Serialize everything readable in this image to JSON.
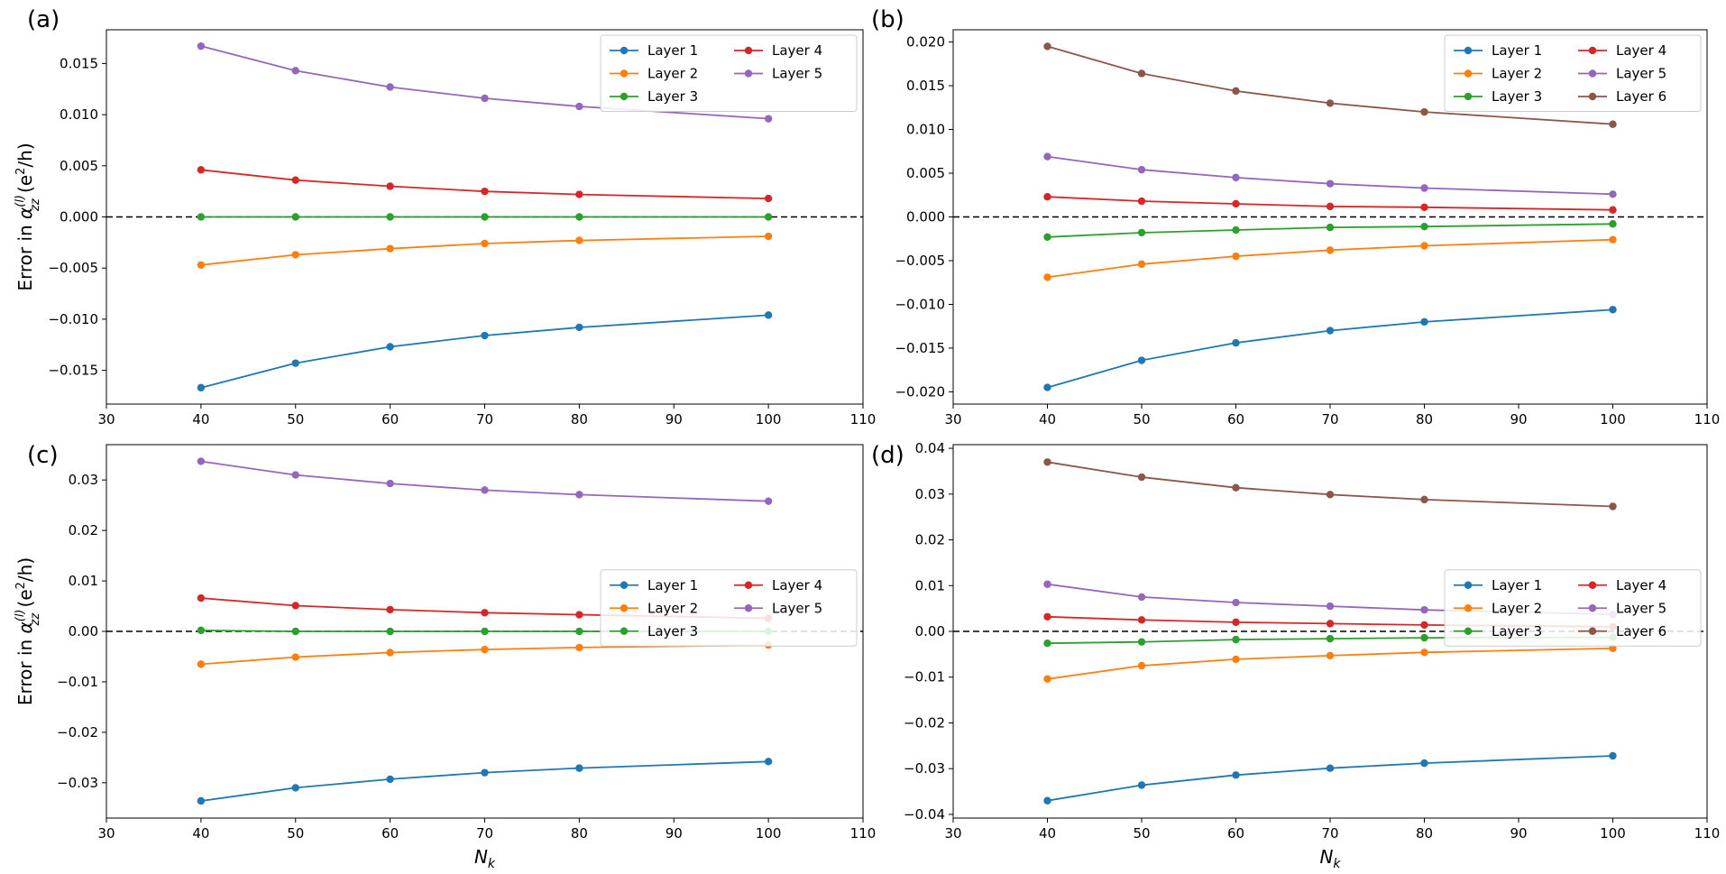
{
  "figure": {
    "ylabel": "Error in α_zz^(l) (e²/h)",
    "ylabel_prefix": "Error in ",
    "ylabel_symbol": "α",
    "ylabel_sub": "zz",
    "ylabel_sup": "(l)",
    "ylabel_units_open": " (e",
    "ylabel_units_sup": "2",
    "ylabel_units_close": "/h)",
    "xlabel_main": "N",
    "xlabel_sub": "k"
  },
  "colors": {
    "Layer 1": "#1f77b4",
    "Layer 2": "#ff7f0e",
    "Layer 3": "#2ca02c",
    "Layer 4": "#d62728",
    "Layer 5": "#9467bd",
    "Layer 6": "#8c564b",
    "reference": "#000000"
  },
  "chart_data": [
    {
      "type": "line",
      "panel_label": "(a)",
      "x": [
        40,
        50,
        60,
        70,
        80,
        100
      ],
      "xlim": [
        30,
        110
      ],
      "xticks": [
        30,
        40,
        50,
        60,
        70,
        80,
        90,
        100,
        110
      ],
      "ylim": [
        -0.0183,
        0.0183
      ],
      "yticks": [
        -0.015,
        -0.01,
        -0.005,
        0.0,
        0.005,
        0.01,
        0.015
      ],
      "ytick_labels": [
        "−0.015",
        "−0.010",
        "−0.005",
        "0.000",
        "0.005",
        "0.010",
        "0.015"
      ],
      "reference_line": 0,
      "legend_position": "top-right",
      "legend_columns": 2,
      "show_xlabel": false,
      "show_ylabel": true,
      "series": [
        {
          "name": "Layer 1",
          "values": [
            -0.0167,
            -0.0143,
            -0.0127,
            -0.0116,
            -0.0108,
            -0.0096
          ]
        },
        {
          "name": "Layer 2",
          "values": [
            -0.0047,
            -0.0037,
            -0.0031,
            -0.0026,
            -0.0023,
            -0.0019
          ]
        },
        {
          "name": "Layer 3",
          "values": [
            0.0,
            0.0,
            0.0,
            0.0,
            0.0,
            0.0
          ]
        },
        {
          "name": "Layer 4",
          "values": [
            0.0046,
            0.0036,
            0.003,
            0.0025,
            0.0022,
            0.0018
          ]
        },
        {
          "name": "Layer 5",
          "values": [
            0.0167,
            0.0143,
            0.0127,
            0.0116,
            0.0108,
            0.0096
          ]
        }
      ]
    },
    {
      "type": "line",
      "panel_label": "(b)",
      "x": [
        40,
        50,
        60,
        70,
        80,
        100
      ],
      "xlim": [
        30,
        110
      ],
      "xticks": [
        30,
        40,
        50,
        60,
        70,
        80,
        90,
        100,
        110
      ],
      "ylim": [
        -0.0214,
        0.0214
      ],
      "yticks": [
        -0.02,
        -0.015,
        -0.01,
        -0.005,
        0.0,
        0.005,
        0.01,
        0.015,
        0.02
      ],
      "ytick_labels": [
        "−0.020",
        "−0.015",
        "−0.010",
        "−0.005",
        "0.000",
        "0.005",
        "0.010",
        "0.015",
        "0.020"
      ],
      "reference_line": 0,
      "legend_position": "top-right",
      "legend_columns": 2,
      "show_xlabel": false,
      "show_ylabel": false,
      "series": [
        {
          "name": "Layer 1",
          "values": [
            -0.0195,
            -0.0164,
            -0.0144,
            -0.013,
            -0.012,
            -0.0106
          ]
        },
        {
          "name": "Layer 2",
          "values": [
            -0.0069,
            -0.0054,
            -0.0045,
            -0.0038,
            -0.0033,
            -0.0026
          ]
        },
        {
          "name": "Layer 3",
          "values": [
            -0.0023,
            -0.0018,
            -0.0015,
            -0.0012,
            -0.0011,
            -0.0008
          ]
        },
        {
          "name": "Layer 4",
          "values": [
            0.0023,
            0.0018,
            0.0015,
            0.0012,
            0.0011,
            0.0008
          ]
        },
        {
          "name": "Layer 5",
          "values": [
            0.0069,
            0.0054,
            0.0045,
            0.0038,
            0.0033,
            0.0026
          ]
        },
        {
          "name": "Layer 6",
          "values": [
            0.0195,
            0.0164,
            0.0144,
            0.013,
            0.012,
            0.0106
          ]
        }
      ]
    },
    {
      "type": "line",
      "panel_label": "(c)",
      "x": [
        40,
        50,
        60,
        70,
        80,
        100
      ],
      "xlim": [
        30,
        110
      ],
      "xticks": [
        30,
        40,
        50,
        60,
        70,
        80,
        90,
        100,
        110
      ],
      "ylim": [
        -0.037,
        0.037
      ],
      "yticks": [
        -0.03,
        -0.02,
        -0.01,
        0.0,
        0.01,
        0.02,
        0.03
      ],
      "ytick_labels": [
        "−0.03",
        "−0.02",
        "−0.01",
        "0.00",
        "0.01",
        "0.02",
        "0.03"
      ],
      "reference_line": 0,
      "legend_position": "center-right",
      "legend_columns": 2,
      "show_xlabel": true,
      "show_ylabel": true,
      "series": [
        {
          "name": "Layer 1",
          "values": [
            -0.0336,
            -0.031,
            -0.0293,
            -0.028,
            -0.0271,
            -0.0258
          ]
        },
        {
          "name": "Layer 2",
          "values": [
            -0.0065,
            -0.0051,
            -0.0042,
            -0.0036,
            -0.0032,
            -0.0027
          ]
        },
        {
          "name": "Layer 3",
          "values": [
            0.0002,
            0.0,
            0.0,
            0.0,
            0.0,
            0.0
          ]
        },
        {
          "name": "Layer 4",
          "values": [
            0.0066,
            0.0051,
            0.0043,
            0.0037,
            0.0033,
            0.0026
          ]
        },
        {
          "name": "Layer 5",
          "values": [
            0.0337,
            0.031,
            0.0293,
            0.028,
            0.0271,
            0.0258
          ]
        }
      ]
    },
    {
      "type": "line",
      "panel_label": "(d)",
      "x": [
        40,
        50,
        60,
        70,
        80,
        100
      ],
      "xlim": [
        30,
        110
      ],
      "xticks": [
        30,
        40,
        50,
        60,
        70,
        80,
        90,
        100,
        110
      ],
      "ylim": [
        -0.0408,
        0.0408
      ],
      "yticks": [
        -0.04,
        -0.03,
        -0.02,
        -0.01,
        0.0,
        0.01,
        0.02,
        0.03,
        0.04
      ],
      "ytick_labels": [
        "−0.04",
        "−0.03",
        "−0.02",
        "−0.01",
        "0.00",
        "0.01",
        "0.02",
        "0.03",
        "0.04"
      ],
      "reference_line": 0,
      "legend_position": "center-right",
      "legend_columns": 2,
      "show_xlabel": true,
      "show_ylabel": false,
      "series": [
        {
          "name": "Layer 1",
          "values": [
            -0.037,
            -0.0336,
            -0.0314,
            -0.0299,
            -0.0288,
            -0.0272
          ]
        },
        {
          "name": "Layer 2",
          "values": [
            -0.0104,
            -0.0075,
            -0.0061,
            -0.0053,
            -0.0046,
            -0.0037
          ]
        },
        {
          "name": "Layer 3",
          "values": [
            -0.0026,
            -0.0023,
            -0.0018,
            -0.0016,
            -0.0014,
            -0.0013
          ]
        },
        {
          "name": "Layer 4",
          "values": [
            0.0032,
            0.0025,
            0.002,
            0.0017,
            0.0014,
            0.001
          ]
        },
        {
          "name": "Layer 5",
          "values": [
            0.0103,
            0.0075,
            0.0063,
            0.0055,
            0.0047,
            0.0037
          ]
        },
        {
          "name": "Layer 6",
          "values": [
            0.037,
            0.0337,
            0.0314,
            0.0299,
            0.0288,
            0.0273
          ]
        }
      ]
    }
  ]
}
